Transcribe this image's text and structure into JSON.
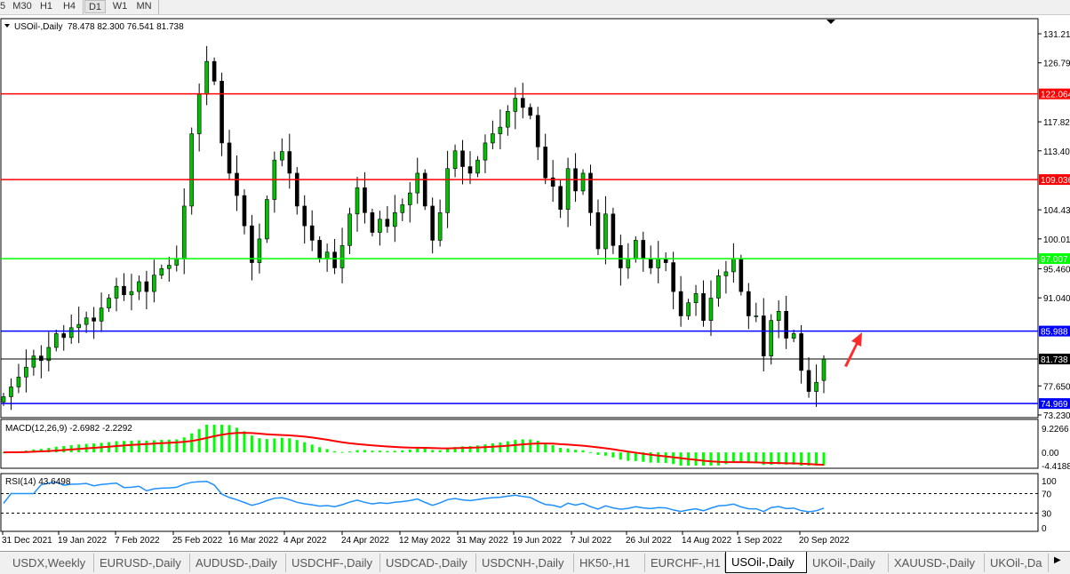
{
  "toolbar": {
    "timeframes": [
      "5",
      "M30",
      "H1",
      "H4",
      "D1",
      "W1",
      "MN"
    ],
    "active": "D1"
  },
  "chart_data": {
    "type": "candlestick",
    "symbol_label": "USOil-,Daily",
    "last_ohlc": {
      "open": "78.478",
      "high": "82.300",
      "low": "76.541",
      "close": "81.738"
    },
    "ylim": [
      73.23,
      131.21
    ],
    "y_ticks": [
      "131.210",
      "126.790",
      "117.820",
      "113.400",
      "104.430",
      "100.010",
      "95.460",
      "91.040",
      "77.650",
      "73.230"
    ],
    "x_ticks": [
      "31 Dec 2021",
      "19 Jan 2022",
      "7 Feb 2022",
      "25 Feb 2022",
      "16 Mar 2022",
      "4 Apr 2022",
      "24 Apr 2022",
      "12 May 2022",
      "31 May 2022",
      "19 Jun 2022",
      "7 Jul 2022",
      "26 Jul 2022",
      "14 Aug 2022",
      "1 Sep 2022",
      "20 Sep 2022"
    ],
    "closes": [
      76.0,
      77.5,
      79,
      80.5,
      82.2,
      81.5,
      83.5,
      85.6,
      85,
      86.5,
      87,
      88,
      87.5,
      89.5,
      91,
      92.8,
      91.5,
      92,
      93.5,
      92,
      94.5,
      95.5,
      96,
      97,
      105,
      116,
      122,
      127,
      124,
      114.6,
      110,
      106.6,
      102,
      96.4,
      100,
      106,
      112,
      113.3,
      110,
      105,
      102,
      99.8,
      97,
      98,
      95.6,
      99,
      103.8,
      107.8,
      104,
      101,
      103,
      101.9,
      104,
      105.2,
      107,
      110,
      105,
      99.8,
      104,
      110.7,
      113.4,
      111,
      110,
      112,
      114.6,
      116,
      117,
      119.4,
      121.4,
      120,
      118.8,
      114,
      109.3,
      108,
      104.5,
      110.7,
      107.3,
      110,
      104,
      98.5,
      103.8,
      99,
      95.6,
      97,
      99.8,
      97,
      95.6,
      97,
      96.4,
      92,
      88.3,
      90.3,
      91.7,
      87.6,
      91,
      94.4,
      95,
      97,
      92,
      88.3,
      88.3,
      82.2,
      87.6,
      89,
      84.9,
      85.6,
      80,
      76.8,
      78.2,
      81.738
    ],
    "horizontal_lines": [
      {
        "price": 122.064,
        "label": "122.064",
        "color": "#ff0000"
      },
      {
        "price": 109.036,
        "label": "109.036",
        "color": "#ff0000"
      },
      {
        "price": 97.007,
        "label": "97.007",
        "color": "#00ff00"
      },
      {
        "price": 85.988,
        "label": "85.988",
        "color": "#0000ff"
      },
      {
        "price": 74.969,
        "label": "74.969",
        "color": "#0000ff"
      }
    ],
    "current_price_label": "81.738",
    "candle_up_color": "#00c000",
    "candle_down_color": "#000000",
    "annotation": "red up arrow",
    "macd": {
      "label": "MACD(12,26,9) -2.6982 -2.2292",
      "ylim": [
        -4.4188,
        9.2266
      ],
      "y_ticks": [
        "9.2266",
        "0.00",
        "-4.4188"
      ],
      "hist_color": "#00ff00",
      "signal_color": "#ff0000"
    },
    "rsi": {
      "label": "RSI(14) 43.6498",
      "ylim": [
        0,
        100
      ],
      "levels": [
        30,
        70
      ],
      "y_ticks": [
        "100",
        "70",
        "30",
        "0"
      ],
      "color": "#1e90ff"
    }
  },
  "tabs": [
    "USDX,Weekly",
    "EURUSD-,Daily",
    "AUDUSD-,Daily",
    "USDCHF-,Daily",
    "USDCAD-,Daily",
    "USDCNH-,Daily",
    "HK50-,H1",
    "EURCHF-,H1",
    "USOil-,Daily",
    "UKOil-,Daily",
    "XAUUSD-,Daily",
    "UKOil-,Da"
  ],
  "active_tab": "USOil-,Daily"
}
